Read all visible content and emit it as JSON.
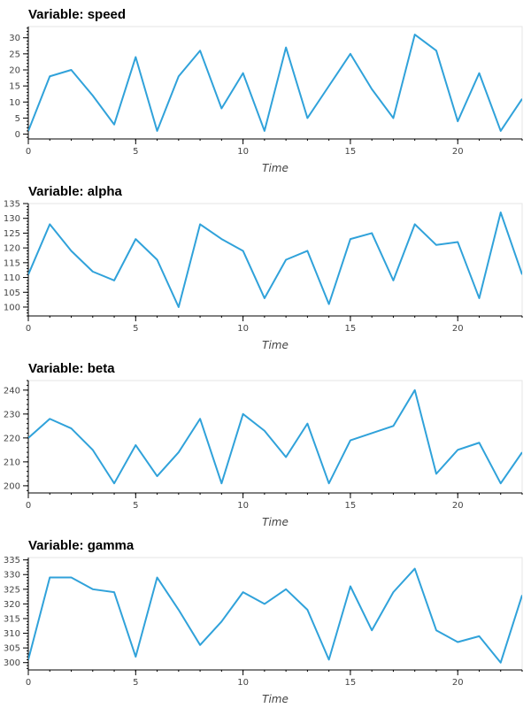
{
  "chart_data": [
    {
      "type": "line",
      "title": "Variable: speed",
      "xlabel": "Time",
      "ylabel": "",
      "color": "#30a2da",
      "x": [
        0,
        1,
        2,
        3,
        4,
        5,
        6,
        7,
        8,
        9,
        10,
        11,
        12,
        13,
        14,
        15,
        16,
        17,
        18,
        19,
        20,
        21,
        22,
        23
      ],
      "values": [
        1,
        18,
        20,
        12,
        3,
        24,
        1,
        18,
        26,
        8,
        19,
        1,
        27,
        5,
        15,
        25,
        14,
        5,
        31,
        26,
        4,
        19,
        1,
        11
      ],
      "xlim": [
        0,
        23
      ],
      "ylim": [
        -1.5,
        33.5
      ],
      "xticks": [
        0,
        5,
        10,
        15,
        20
      ],
      "yticks": [
        0,
        5,
        10,
        15,
        20,
        25,
        30
      ]
    },
    {
      "type": "line",
      "title": "Variable: alpha",
      "xlabel": "Time",
      "ylabel": "",
      "color": "#30a2da",
      "x": [
        0,
        1,
        2,
        3,
        4,
        5,
        6,
        7,
        8,
        9,
        10,
        11,
        12,
        13,
        14,
        15,
        16,
        17,
        18,
        19,
        20,
        21,
        22,
        23
      ],
      "values": [
        111,
        128,
        119,
        112,
        109,
        123,
        116,
        100,
        128,
        123,
        119,
        103,
        116,
        119,
        101,
        123,
        125,
        109,
        128,
        121,
        122,
        103,
        132,
        111
      ],
      "xlim": [
        0,
        23
      ],
      "ylim": [
        97,
        135
      ],
      "xticks": [
        0,
        5,
        10,
        15,
        20
      ],
      "yticks": [
        100,
        105,
        110,
        115,
        120,
        125,
        130,
        135
      ]
    },
    {
      "type": "line",
      "title": "Variable: beta",
      "xlabel": "Time",
      "ylabel": "",
      "color": "#30a2da",
      "x": [
        0,
        1,
        2,
        3,
        4,
        5,
        6,
        7,
        8,
        9,
        10,
        11,
        12,
        13,
        14,
        15,
        16,
        17,
        18,
        19,
        20,
        21,
        22,
        23
      ],
      "values": [
        220,
        228,
        224,
        215,
        201,
        217,
        204,
        214,
        228,
        201,
        230,
        223,
        212,
        226,
        201,
        219,
        222,
        225,
        240,
        205,
        215,
        218,
        201,
        214
      ],
      "xlim": [
        0,
        23
      ],
      "ylim": [
        197,
        244
      ],
      "xticks": [
        0,
        5,
        10,
        15,
        20
      ],
      "yticks": [
        200,
        210,
        220,
        230,
        240
      ]
    },
    {
      "type": "line",
      "title": "Variable: gamma",
      "xlabel": "Time",
      "ylabel": "",
      "color": "#30a2da",
      "x": [
        0,
        1,
        2,
        3,
        4,
        5,
        6,
        7,
        8,
        9,
        10,
        11,
        12,
        13,
        14,
        15,
        16,
        17,
        18,
        19,
        20,
        21,
        22,
        23
      ],
      "values": [
        301,
        329,
        329,
        325,
        324,
        302,
        329,
        318,
        306,
        314,
        324,
        320,
        325,
        318,
        301,
        326,
        311,
        324,
        332,
        311,
        307,
        309,
        300,
        323
      ],
      "xlim": [
        0,
        23
      ],
      "ylim": [
        297.5,
        335.8
      ],
      "xticks": [
        0,
        5,
        10,
        15,
        20
      ],
      "yticks": [
        300,
        305,
        310,
        315,
        320,
        325,
        330,
        335
      ]
    }
  ]
}
